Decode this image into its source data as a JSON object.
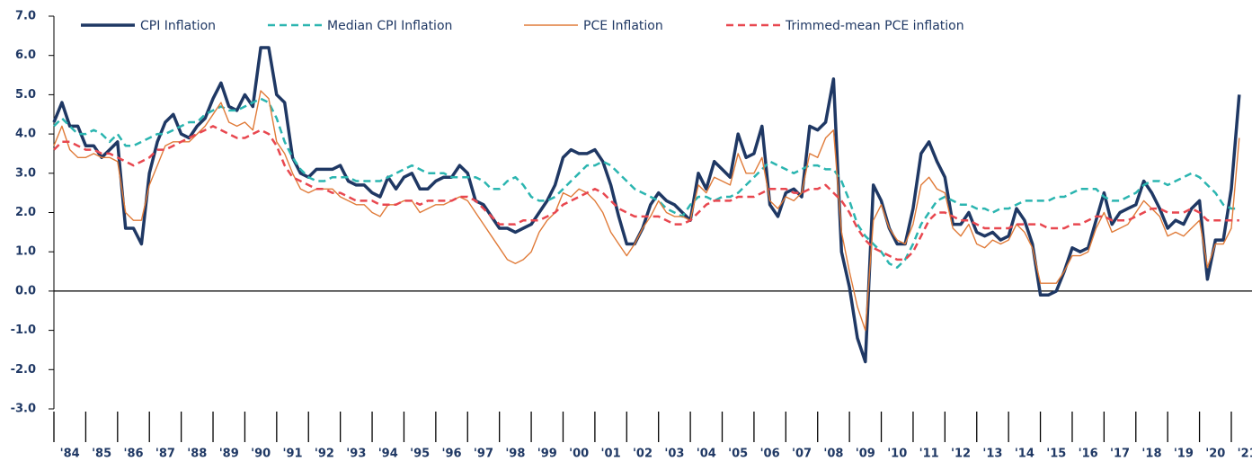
{
  "chart_data": {
    "type": "line",
    "x": [
      1984,
      1984.25,
      1984.5,
      1984.75,
      1985,
      1985.25,
      1985.5,
      1985.75,
      1986,
      1986.25,
      1986.5,
      1986.75,
      1987,
      1987.25,
      1987.5,
      1987.75,
      1988,
      1988.25,
      1988.5,
      1988.75,
      1989,
      1989.25,
      1989.5,
      1989.75,
      1990,
      1990.25,
      1990.5,
      1990.75,
      1991,
      1991.25,
      1991.5,
      1991.75,
      1992,
      1992.25,
      1992.5,
      1992.75,
      1993,
      1993.25,
      1993.5,
      1993.75,
      1994,
      1994.25,
      1994.5,
      1994.75,
      1995,
      1995.25,
      1995.5,
      1995.75,
      1996,
      1996.25,
      1996.5,
      1996.75,
      1997,
      1997.25,
      1997.5,
      1997.75,
      1998,
      1998.25,
      1998.5,
      1998.75,
      1999,
      1999.25,
      1999.5,
      1999.75,
      2000,
      2000.25,
      2000.5,
      2000.75,
      2001,
      2001.25,
      2001.5,
      2001.75,
      2002,
      2002.25,
      2002.5,
      2002.75,
      2003,
      2003.25,
      2003.5,
      2003.75,
      2004,
      2004.25,
      2004.5,
      2004.75,
      2005,
      2005.25,
      2005.5,
      2005.75,
      2006,
      2006.25,
      2006.5,
      2006.75,
      2007,
      2007.25,
      2007.5,
      2007.75,
      2008,
      2008.25,
      2008.5,
      2008.75,
      2009,
      2009.25,
      2009.5,
      2009.75,
      2010,
      2010.25,
      2010.5,
      2010.75,
      2011,
      2011.25,
      2011.5,
      2011.75,
      2012,
      2012.25,
      2012.5,
      2012.75,
      2013,
      2013.25,
      2013.5,
      2013.75,
      2014,
      2014.25,
      2014.5,
      2014.75,
      2015,
      2015.25,
      2015.5,
      2015.75,
      2016,
      2016.25,
      2016.5,
      2016.75,
      2017,
      2017.25,
      2017.5,
      2017.75,
      2018,
      2018.25,
      2018.5,
      2018.75,
      2019,
      2019.25,
      2019.5,
      2019.75,
      2020,
      2020.25,
      2020.5,
      2020.75,
      2021,
      2021.25
    ],
    "series": [
      {
        "name": "CPI Inflation",
        "color": "#1f3864",
        "line_style": "solid",
        "values": [
          4.3,
          4.8,
          4.2,
          4.2,
          3.7,
          3.7,
          3.4,
          3.6,
          3.8,
          1.6,
          1.6,
          1.2,
          3.0,
          3.8,
          4.3,
          4.5,
          4.0,
          3.9,
          4.2,
          4.4,
          4.9,
          5.3,
          4.7,
          4.6,
          5.0,
          4.7,
          6.2,
          6.2,
          5.0,
          4.8,
          3.4,
          3.0,
          2.9,
          3.1,
          3.1,
          3.1,
          3.2,
          2.8,
          2.7,
          2.7,
          2.5,
          2.4,
          2.9,
          2.6,
          2.9,
          3.0,
          2.6,
          2.6,
          2.8,
          2.9,
          2.9,
          3.2,
          3.0,
          2.3,
          2.2,
          1.9,
          1.6,
          1.6,
          1.5,
          1.6,
          1.7,
          2.0,
          2.3,
          2.7,
          3.4,
          3.6,
          3.5,
          3.5,
          3.6,
          3.3,
          2.7,
          1.9,
          1.2,
          1.2,
          1.6,
          2.2,
          2.5,
          2.3,
          2.2,
          2.0,
          1.8,
          3.0,
          2.6,
          3.3,
          3.1,
          2.9,
          4.0,
          3.4,
          3.5,
          4.2,
          2.2,
          1.9,
          2.5,
          2.6,
          2.4,
          4.2,
          4.1,
          4.3,
          5.4,
          1.0,
          0.1,
          -1.2,
          -1.8,
          2.7,
          2.3,
          1.6,
          1.2,
          1.2,
          2.1,
          3.5,
          3.8,
          3.3,
          2.9,
          1.7,
          1.7,
          2.0,
          1.5,
          1.4,
          1.5,
          1.3,
          1.4,
          2.1,
          1.8,
          1.2,
          -0.1,
          -0.1,
          0.0,
          0.5,
          1.1,
          1.0,
          1.1,
          1.8,
          2.5,
          1.7,
          2.0,
          2.1,
          2.2,
          2.8,
          2.5,
          2.1,
          1.6,
          1.8,
          1.7,
          2.1,
          2.3,
          0.3,
          1.3,
          1.3,
          2.6,
          5.0
        ]
      },
      {
        "name": "Median CPI Inflation",
        "color": "#2bb5b0",
        "line_style": "dashed",
        "values": [
          4.2,
          4.4,
          4.2,
          4.0,
          4.0,
          4.1,
          4.0,
          3.8,
          4.0,
          3.7,
          3.7,
          3.8,
          3.9,
          4.0,
          4.0,
          4.1,
          4.2,
          4.3,
          4.3,
          4.5,
          4.6,
          4.7,
          4.6,
          4.6,
          4.7,
          4.8,
          4.9,
          4.8,
          4.4,
          3.8,
          3.4,
          3.1,
          2.9,
          2.8,
          2.8,
          2.9,
          2.9,
          2.9,
          2.8,
          2.8,
          2.8,
          2.8,
          2.9,
          3.0,
          3.1,
          3.2,
          3.1,
          3.0,
          3.0,
          3.0,
          2.9,
          2.9,
          2.9,
          2.9,
          2.8,
          2.6,
          2.6,
          2.8,
          2.9,
          2.7,
          2.4,
          2.3,
          2.3,
          2.4,
          2.6,
          2.8,
          3.0,
          3.2,
          3.2,
          3.3,
          3.2,
          3.0,
          2.8,
          2.6,
          2.5,
          2.4,
          2.3,
          2.1,
          2.0,
          1.9,
          2.2,
          2.4,
          2.4,
          2.3,
          2.4,
          2.4,
          2.5,
          2.7,
          2.9,
          3.1,
          3.3,
          3.2,
          3.1,
          3.0,
          3.1,
          3.2,
          3.2,
          3.1,
          3.1,
          2.8,
          2.3,
          1.7,
          1.4,
          1.2,
          1.0,
          0.7,
          0.6,
          0.8,
          1.2,
          1.7,
          2.0,
          2.3,
          2.4,
          2.3,
          2.2,
          2.2,
          2.1,
          2.1,
          2.0,
          2.1,
          2.1,
          2.2,
          2.3,
          2.3,
          2.3,
          2.3,
          2.4,
          2.4,
          2.5,
          2.6,
          2.6,
          2.6,
          2.4,
          2.3,
          2.3,
          2.4,
          2.5,
          2.7,
          2.8,
          2.8,
          2.7,
          2.8,
          2.9,
          3.0,
          2.9,
          2.7,
          2.5,
          2.2,
          2.1,
          2.1
        ]
      },
      {
        "name": "PCE Inflation",
        "color": "#e07b39",
        "line_style": "thin",
        "values": [
          3.7,
          4.2,
          3.6,
          3.4,
          3.4,
          3.5,
          3.4,
          3.4,
          3.3,
          2.0,
          1.8,
          1.8,
          2.7,
          3.2,
          3.7,
          3.8,
          3.8,
          3.8,
          4.0,
          4.2,
          4.5,
          4.8,
          4.3,
          4.2,
          4.3,
          4.1,
          5.1,
          4.9,
          3.8,
          3.5,
          3.0,
          2.6,
          2.5,
          2.6,
          2.6,
          2.6,
          2.4,
          2.3,
          2.2,
          2.2,
          2.0,
          1.9,
          2.2,
          2.2,
          2.3,
          2.3,
          2.0,
          2.1,
          2.2,
          2.2,
          2.3,
          2.4,
          2.3,
          2.0,
          1.7,
          1.4,
          1.1,
          0.8,
          0.7,
          0.8,
          1.0,
          1.5,
          1.8,
          2.0,
          2.5,
          2.4,
          2.6,
          2.5,
          2.3,
          2.0,
          1.5,
          1.2,
          0.9,
          1.2,
          1.6,
          1.9,
          2.3,
          2.0,
          1.9,
          1.9,
          1.8,
          2.7,
          2.5,
          2.9,
          2.8,
          2.7,
          3.5,
          3.0,
          3.0,
          3.4,
          2.3,
          2.1,
          2.4,
          2.3,
          2.5,
          3.5,
          3.4,
          3.9,
          4.1,
          1.5,
          0.5,
          -0.4,
          -1.0,
          1.8,
          2.2,
          1.6,
          1.3,
          1.2,
          1.7,
          2.7,
          2.9,
          2.6,
          2.5,
          1.6,
          1.4,
          1.7,
          1.2,
          1.1,
          1.3,
          1.2,
          1.3,
          1.7,
          1.5,
          1.1,
          0.2,
          0.2,
          0.2,
          0.5,
          0.9,
          0.9,
          1.0,
          1.6,
          2.0,
          1.5,
          1.6,
          1.7,
          2.0,
          2.3,
          2.1,
          1.9,
          1.4,
          1.5,
          1.4,
          1.6,
          1.8,
          0.6,
          1.2,
          1.2,
          1.6,
          3.9
        ]
      },
      {
        "name": "Trimmed-mean PCE inflation",
        "color": "#e8474f",
        "line_style": "dashed",
        "values": [
          3.6,
          3.8,
          3.8,
          3.7,
          3.6,
          3.6,
          3.5,
          3.5,
          3.4,
          3.3,
          3.2,
          3.3,
          3.4,
          3.6,
          3.6,
          3.7,
          3.8,
          3.9,
          4.0,
          4.1,
          4.2,
          4.1,
          4.0,
          3.9,
          3.9,
          4.0,
          4.1,
          4.0,
          3.7,
          3.2,
          2.9,
          2.8,
          2.7,
          2.6,
          2.6,
          2.5,
          2.5,
          2.4,
          2.3,
          2.3,
          2.3,
          2.2,
          2.2,
          2.2,
          2.3,
          2.3,
          2.2,
          2.3,
          2.3,
          2.3,
          2.3,
          2.4,
          2.4,
          2.3,
          2.1,
          1.9,
          1.7,
          1.7,
          1.7,
          1.8,
          1.8,
          1.8,
          1.9,
          2.0,
          2.2,
          2.3,
          2.4,
          2.5,
          2.6,
          2.5,
          2.3,
          2.1,
          2.0,
          1.9,
          1.9,
          1.9,
          1.9,
          1.8,
          1.7,
          1.7,
          1.8,
          2.0,
          2.2,
          2.3,
          2.3,
          2.3,
          2.4,
          2.4,
          2.4,
          2.5,
          2.6,
          2.6,
          2.6,
          2.5,
          2.5,
          2.6,
          2.6,
          2.7,
          2.5,
          2.3,
          2.0,
          1.6,
          1.3,
          1.1,
          1.0,
          0.9,
          0.8,
          0.8,
          1.0,
          1.4,
          1.8,
          2.0,
          2.0,
          1.9,
          1.8,
          1.8,
          1.7,
          1.6,
          1.6,
          1.6,
          1.6,
          1.7,
          1.7,
          1.7,
          1.7,
          1.6,
          1.6,
          1.6,
          1.7,
          1.7,
          1.8,
          1.9,
          1.9,
          1.8,
          1.8,
          1.8,
          1.9,
          2.0,
          2.1,
          2.1,
          2.0,
          2.0,
          2.0,
          2.1,
          2.0,
          1.8,
          1.8,
          1.8,
          1.8,
          1.8
        ]
      }
    ],
    "xlim": [
      1984,
      2021.65
    ],
    "xticks": [
      {
        "value": 1984,
        "label": "'84"
      },
      {
        "value": 1985,
        "label": "'85"
      },
      {
        "value": 1986,
        "label": "'86"
      },
      {
        "value": 1987,
        "label": "'87"
      },
      {
        "value": 1988,
        "label": "'88"
      },
      {
        "value": 1989,
        "label": "'89"
      },
      {
        "value": 1990,
        "label": "'90"
      },
      {
        "value": 1991,
        "label": "'91"
      },
      {
        "value": 1992,
        "label": "'92"
      },
      {
        "value": 1993,
        "label": "'93"
      },
      {
        "value": 1994,
        "label": "'94"
      },
      {
        "value": 1995,
        "label": "'95"
      },
      {
        "value": 1996,
        "label": "'96"
      },
      {
        "value": 1997,
        "label": "'97"
      },
      {
        "value": 1998,
        "label": "'98"
      },
      {
        "value": 1999,
        "label": "'99"
      },
      {
        "value": 2000,
        "label": "'00"
      },
      {
        "value": 2001,
        "label": "'01"
      },
      {
        "value": 2002,
        "label": "'02"
      },
      {
        "value": 2003,
        "label": "'03"
      },
      {
        "value": 2004,
        "label": "'04"
      },
      {
        "value": 2005,
        "label": "'05"
      },
      {
        "value": 2006,
        "label": "'06"
      },
      {
        "value": 2007,
        "label": "'07"
      },
      {
        "value": 2008,
        "label": "'08"
      },
      {
        "value": 2009,
        "label": "'09"
      },
      {
        "value": 2010,
        "label": "'10"
      },
      {
        "value": 2011,
        "label": "'11"
      },
      {
        "value": 2012,
        "label": "'12"
      },
      {
        "value": 2013,
        "label": "'13"
      },
      {
        "value": 2014,
        "label": "'14"
      },
      {
        "value": 2015,
        "label": "'15"
      },
      {
        "value": 2016,
        "label": "'16"
      },
      {
        "value": 2017,
        "label": "'17"
      },
      {
        "value": 2018,
        "label": "'18"
      },
      {
        "value": 2019,
        "label": "'19"
      },
      {
        "value": 2020,
        "label": "'20"
      },
      {
        "value": 2021,
        "label": "'21"
      }
    ],
    "ylim": [
      -3,
      7
    ],
    "yticks": [
      {
        "value": 7,
        "label": "7.0"
      },
      {
        "value": 6,
        "label": "6.0"
      },
      {
        "value": 5,
        "label": "5.0"
      },
      {
        "value": 4,
        "label": "4.0"
      },
      {
        "value": 3,
        "label": "3.0"
      },
      {
        "value": 2,
        "label": "2.0"
      },
      {
        "value": 1,
        "label": "1.0"
      },
      {
        "value": 0,
        "label": "0.0"
      },
      {
        "value": -1,
        "label": "-1.0"
      },
      {
        "value": -2,
        "label": "-2.0"
      },
      {
        "value": -3,
        "label": "-3.0"
      }
    ],
    "legend": "top"
  }
}
